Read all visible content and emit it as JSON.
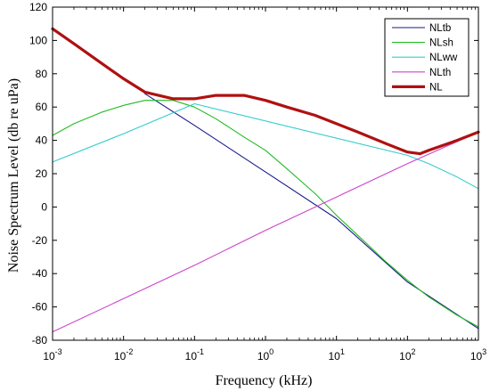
{
  "chart_data": {
    "type": "line",
    "title": "",
    "xlabel": "Frequency (kHz)",
    "ylabel": "Noise Spectrum Level (db re uPa)",
    "x_scale": "log",
    "xlim": [
      0.001,
      1000
    ],
    "ylim": [
      -80,
      120
    ],
    "grid": false,
    "legend_position": "top-right",
    "x_ticks": [
      {
        "value": 0.001,
        "base": "10",
        "exp": "-3"
      },
      {
        "value": 0.01,
        "base": "10",
        "exp": "-2"
      },
      {
        "value": 0.1,
        "base": "10",
        "exp": "-1"
      },
      {
        "value": 1,
        "base": "10",
        "exp": "0"
      },
      {
        "value": 10,
        "base": "10",
        "exp": "1"
      },
      {
        "value": 100,
        "base": "10",
        "exp": "2"
      },
      {
        "value": 1000,
        "base": "10",
        "exp": "3"
      }
    ],
    "y_ticks": [
      -80,
      -60,
      -40,
      -20,
      0,
      20,
      40,
      60,
      80,
      100,
      120
    ],
    "series": [
      {
        "name": "NLtb",
        "color": "#1a1a8c",
        "line_style": "thin",
        "x": [
          0.02,
          0.1,
          1,
          10,
          100,
          1000
        ],
        "y": [
          68,
          49,
          21,
          -7,
          -45,
          -73
        ]
      },
      {
        "name": "NLsh",
        "color": "#22bb22",
        "line_style": "thin",
        "x": [
          0.001,
          0.002,
          0.005,
          0.01,
          0.02,
          0.05,
          0.1,
          0.2,
          0.5,
          1,
          2,
          5,
          10,
          20,
          50,
          100,
          200,
          500,
          1000
        ],
        "y": [
          43,
          50,
          57,
          61,
          64,
          64,
          60,
          53,
          42,
          34,
          23,
          8,
          -5,
          -17,
          -33,
          -44,
          -54,
          -65,
          -72
        ]
      },
      {
        "name": "NLww",
        "color": "#33cccc",
        "line_style": "thin",
        "x": [
          0.001,
          0.01,
          0.1,
          100,
          200,
          500,
          1000
        ],
        "y": [
          27,
          44,
          62,
          31,
          26,
          18,
          11
        ]
      },
      {
        "name": "NLth",
        "color": "#cc44cc",
        "line_style": "thin",
        "x": [
          0.001,
          0.01,
          0.1,
          1,
          10,
          100,
          1000
        ],
        "y": [
          -75,
          -55,
          -35,
          -14,
          6,
          26,
          45
        ]
      },
      {
        "name": "NL",
        "color": "#b01010",
        "line_style": "thick",
        "x": [
          0.001,
          0.002,
          0.005,
          0.01,
          0.02,
          0.05,
          0.1,
          0.2,
          0.5,
          1,
          2,
          5,
          10,
          20,
          50,
          100,
          150,
          200,
          500,
          1000
        ],
        "y": [
          107,
          98,
          86,
          77,
          69,
          65,
          65,
          67,
          67,
          64,
          60,
          55,
          50,
          45,
          38,
          33,
          32,
          34,
          40,
          45
        ]
      }
    ]
  }
}
